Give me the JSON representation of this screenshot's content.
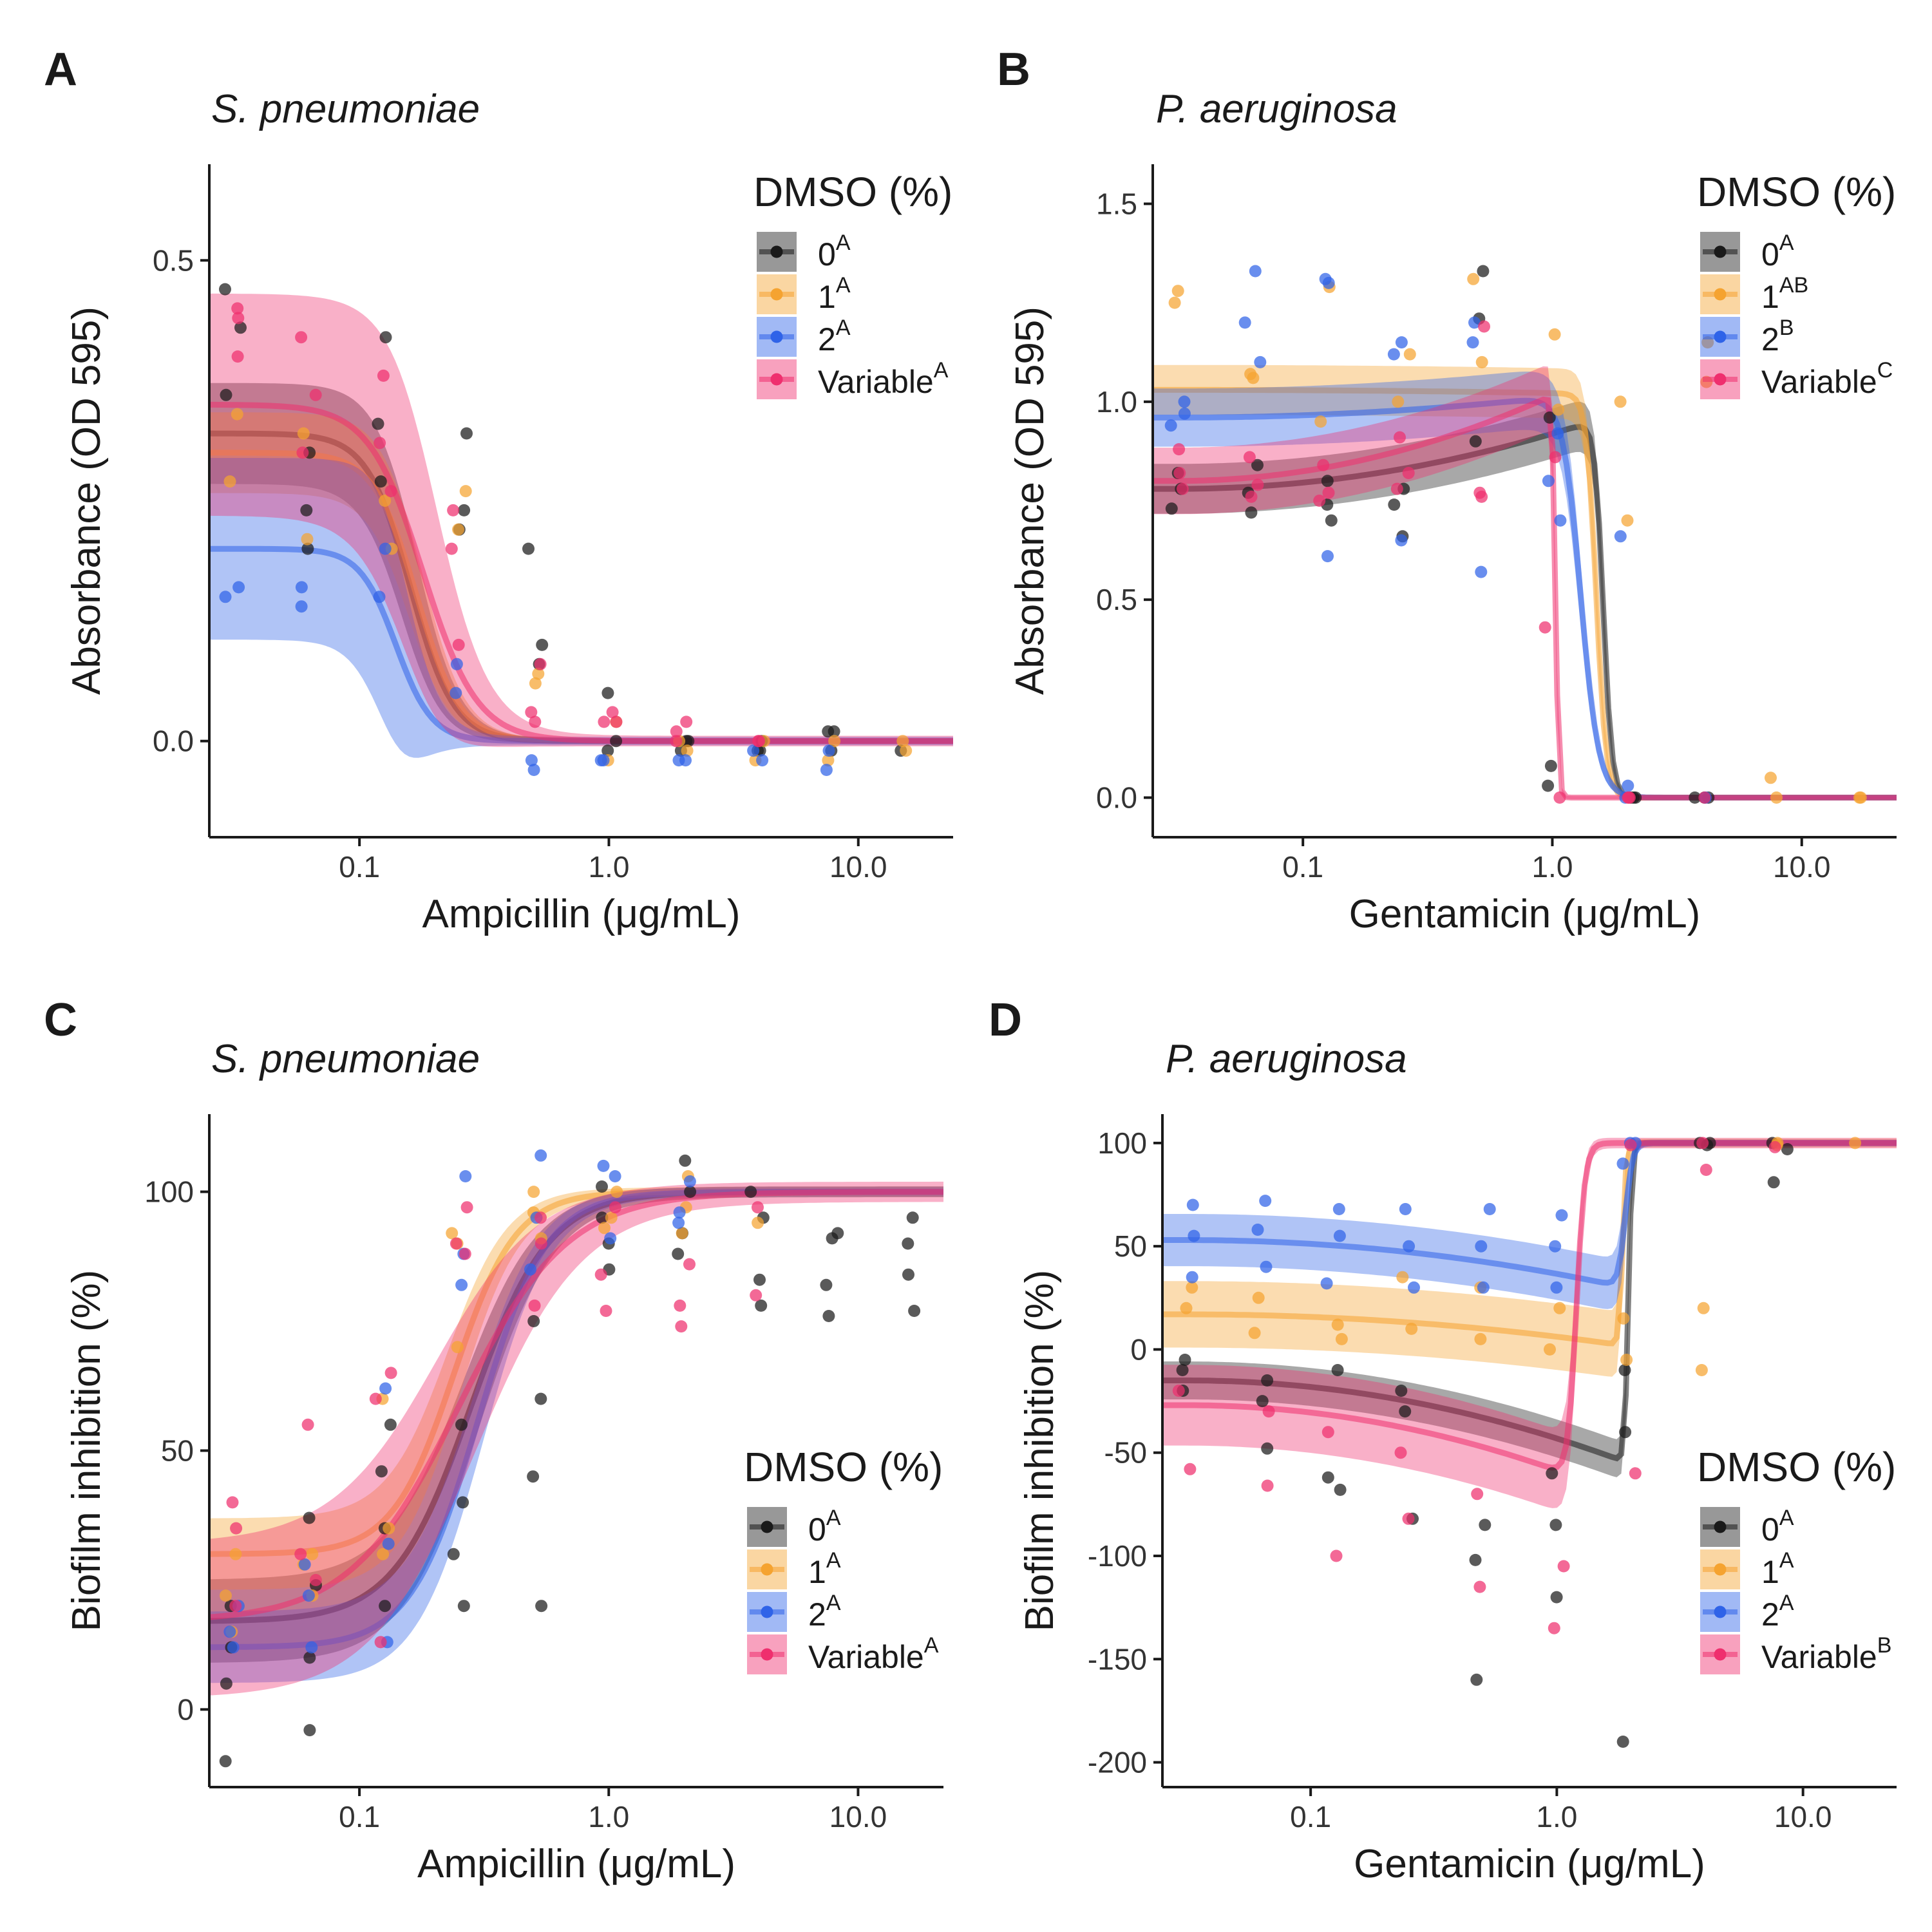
{
  "legend_title": "DMSO (%)",
  "groups": [
    {
      "key": "0",
      "color": "#1a1a1a"
    },
    {
      "key": "1",
      "color": "#f5a330"
    },
    {
      "key": "2",
      "color": "#2f63e8"
    },
    {
      "key": "Variable",
      "color": "#ef2f6e"
    }
  ],
  "chart_data": [
    {
      "panel": "A",
      "title": "S. pneumoniae",
      "type": "line",
      "xlabel_prefix": "Ampicillin (",
      "xlabel_mu": "μ",
      "xlabel_suffix": "g/mL)",
      "ylabel": "Absorbance (OD 595)",
      "x_scale": "log10",
      "xlim": [
        0.025,
        24
      ],
      "ylim": [
        -0.1,
        0.6
      ],
      "x_ticks": [
        0.1,
        1.0,
        10.0
      ],
      "x_tick_labels": [
        "0.1",
        "1.0",
        "10.0"
      ],
      "y_ticks": [
        0.0,
        0.5
      ],
      "y_tick_labels": [
        "0.0",
        "0.5"
      ],
      "legend_position": "top-right",
      "concentrations": [
        0.03125,
        0.0625,
        0.125,
        0.25,
        0.5,
        1,
        2,
        4,
        8,
        16
      ],
      "series": [
        {
          "name": "0",
          "superscript": "A",
          "top": 0.32,
          "bottom": 0.0,
          "ec50": 0.16,
          "hill": 5,
          "band": 0.05,
          "points": [
            0.47,
            0.43,
            0.36,
            0.3,
            0.24,
            0.2,
            0.42,
            0.33,
            0.27,
            0.22,
            0.32,
            0.24,
            0.2,
            0.1,
            0.08,
            0.05,
            0.0,
            -0.01,
            0.0,
            -0.01,
            0.0,
            -0.01,
            0.0,
            -0.01,
            0.01,
            -0.01,
            0.01,
            -0.01
          ]
        },
        {
          "name": "1",
          "superscript": "A",
          "top": 0.3,
          "bottom": 0.0,
          "ec50": 0.17,
          "hill": 5,
          "band": 0.04,
          "points": [
            0.34,
            0.27,
            0.21,
            0.32,
            0.25,
            0.2,
            0.26,
            0.22,
            0.07,
            0.06,
            0.02,
            -0.02,
            0.0,
            -0.01,
            0.0,
            -0.02,
            0.0,
            -0.02,
            0.0,
            -0.01
          ]
        },
        {
          "name": "2",
          "superscript": "A",
          "top": 0.2,
          "bottom": 0.0,
          "ec50": 0.14,
          "hill": 6,
          "band": 0.09,
          "points": [
            0.16,
            0.15,
            0.16,
            0.14,
            0.2,
            0.15,
            0.08,
            0.05,
            -0.02,
            -0.03,
            -0.02,
            -0.02,
            -0.02,
            -0.02,
            -0.01,
            -0.02,
            -0.01,
            -0.03
          ]
        },
        {
          "name": "Variable",
          "superscript": "A",
          "top": 0.35,
          "bottom": 0.0,
          "ec50": 0.18,
          "hill": 4,
          "band": 0.11,
          "points": [
            0.45,
            0.44,
            0.4,
            0.36,
            0.3,
            0.42,
            0.38,
            0.31,
            0.26,
            0.2,
            0.24,
            0.1,
            0.08,
            0.03,
            0.02,
            0.03,
            0.02,
            0.02,
            0.02,
            0.01,
            0.0,
            0.0,
            0.0
          ]
        }
      ]
    },
    {
      "panel": "B",
      "title": "P. aeruginosa",
      "type": "line",
      "xlabel_prefix": "Gentamicin (",
      "xlabel_mu": "μ",
      "xlabel_suffix": "g/mL)",
      "ylabel": "Absorbance (OD 595)",
      "x_scale": "log10",
      "xlim": [
        0.025,
        24
      ],
      "ylim": [
        -0.1,
        1.6
      ],
      "x_ticks": [
        0.1,
        1.0,
        10.0
      ],
      "x_tick_labels": [
        "0.1",
        "1.0",
        "10.0"
      ],
      "y_ticks": [
        0.0,
        0.5,
        1.0,
        1.5
      ],
      "y_tick_labels": [
        "0.0",
        "0.5",
        "1.0",
        "1.5"
      ],
      "legend_position": "top-right",
      "concentrations": [
        0.03125,
        0.0625,
        0.125,
        0.25,
        0.5,
        1,
        2,
        4,
        8,
        16
      ],
      "series": [
        {
          "name": "0",
          "superscript": "A",
          "top": 0.78,
          "bottom": 0.0,
          "ec50": 1.6,
          "hill": 25,
          "band": 0.06,
          "rise": 0.18,
          "points": [
            0.73,
            0.78,
            0.82,
            0.72,
            0.77,
            0.84,
            0.7,
            0.74,
            0.8,
            0.66,
            0.74,
            0.78,
            1.21,
            0.9,
            1.33,
            0.96,
            0.08,
            0.03,
            0.0,
            0.0,
            0.0,
            0.0,
            0.0,
            0.0
          ]
        },
        {
          "name": "1",
          "superscript": "AB",
          "top": 1.03,
          "bottom": 0.0,
          "ec50": 1.5,
          "hill": 22,
          "band": 0.06,
          "rise": -0.01,
          "points": [
            1.28,
            1.25,
            1.07,
            1.06,
            0.95,
            1.29,
            1.12,
            1.0,
            1.31,
            1.1,
            0.98,
            1.17,
            1.0,
            0.7,
            1.15,
            1.05,
            0.05,
            0.0,
            0.0,
            0.0
          ]
        },
        {
          "name": "2",
          "superscript": "B",
          "top": 0.96,
          "bottom": 0.0,
          "ec50": 1.3,
          "hill": 12,
          "band": 0.07,
          "rise": 0.06,
          "points": [
            1.0,
            0.97,
            0.94,
            1.33,
            1.2,
            1.1,
            0.61,
            1.31,
            1.3,
            0.65,
            1.15,
            1.12,
            0.57,
            1.2,
            1.15,
            0.92,
            0.7,
            0.8,
            0.66,
            0.03,
            0.0,
            0.0
          ]
        },
        {
          "name": "Variable",
          "superscript": "C",
          "top": 0.8,
          "bottom": 0.0,
          "ec50": 1.03,
          "hill": 70,
          "band": 0.08,
          "rise": 0.22,
          "points": [
            0.88,
            0.82,
            0.78,
            0.86,
            0.79,
            0.76,
            0.84,
            0.77,
            0.75,
            0.91,
            0.82,
            0.78,
            1.19,
            0.77,
            0.76,
            0.43,
            0.86,
            0.0,
            0.0,
            0.0,
            0.0,
            0.0
          ]
        }
      ]
    },
    {
      "panel": "C",
      "title": "S. pneumoniae",
      "type": "line",
      "xlabel_prefix": "Ampicillin (",
      "xlabel_mu": "μ",
      "xlabel_suffix": "g/mL)",
      "ylabel": "Biofilm inhibition (%)",
      "x_scale": "log10",
      "xlim": [
        0.025,
        22
      ],
      "ylim": [
        -15,
        115
      ],
      "x_ticks": [
        0.1,
        1.0,
        10.0
      ],
      "x_tick_labels": [
        "0.1",
        "1.0",
        "10.0"
      ],
      "y_ticks": [
        0,
        50,
        100
      ],
      "y_tick_labels": [
        "0",
        "50",
        "100"
      ],
      "legend_position": "bottom-right",
      "concentrations": [
        0.03125,
        0.0625,
        0.125,
        0.25,
        0.5,
        1,
        2,
        4,
        8,
        16
      ],
      "series": [
        {
          "name": "0",
          "superscript": "A",
          "top": 100,
          "bottom": 17,
          "ec50": 0.28,
          "hill": 2.8,
          "band": 7,
          "points": [
            -10,
            5,
            12,
            20,
            24,
            37,
            -4,
            10,
            20,
            35,
            46,
            55,
            20,
            30,
            40,
            55,
            20,
            45,
            60,
            75,
            85,
            90,
            95,
            101,
            92,
            100,
            106,
            88,
            83,
            95,
            100,
            78,
            82,
            91,
            76,
            92,
            95,
            77,
            84,
            90
          ]
        },
        {
          "name": "1",
          "superscript": "A",
          "top": 100,
          "bottom": 30,
          "ec50": 0.24,
          "hill": 3.5,
          "band": 6,
          "points": [
            30,
            22,
            15,
            28,
            22,
            30,
            35,
            30,
            60,
            70,
            90,
            92,
            100,
            96,
            91,
            93,
            100,
            95,
            103,
            97,
            92,
            94
          ]
        },
        {
          "name": "2",
          "superscript": "A",
          "top": 100,
          "bottom": 12,
          "ec50": 0.3,
          "hill": 3.2,
          "band": 6,
          "points": [
            12,
            15,
            20,
            12,
            22,
            28,
            13,
            32,
            62,
            82,
            88,
            103,
            85,
            107,
            95,
            105,
            91,
            103,
            96,
            102,
            94
          ]
        },
        {
          "name": "Variable",
          "superscript": "A",
          "top": 100,
          "bottom": 17,
          "ec50": 0.25,
          "hill": 2.0,
          "band": 13,
          "points": [
            35,
            40,
            20,
            30,
            55,
            25,
            65,
            60,
            13,
            90,
            88,
            97,
            95,
            78,
            90,
            77,
            97,
            84,
            78,
            86,
            74,
            80,
            97
          ]
        }
      ]
    },
    {
      "panel": "D",
      "title": "P. aeruginosa",
      "type": "line",
      "xlabel_prefix": "Gentamicin (",
      "xlabel_mu": "μ",
      "xlabel_suffix": "g/mL)",
      "ylabel": "Biofilm inhibition (%)",
      "x_scale": "log10",
      "xlim": [
        0.025,
        24
      ],
      "ylim": [
        -212,
        114
      ],
      "x_ticks": [
        0.1,
        1.0,
        10.0
      ],
      "x_tick_labels": [
        "0.1",
        "1.0",
        "10.0"
      ],
      "y_ticks": [
        -200,
        -150,
        -100,
        -50,
        0,
        50,
        100
      ],
      "y_tick_labels": [
        "-200",
        "-150",
        "-100",
        "-50",
        "0",
        "50",
        "100"
      ],
      "legend_position": "bottom-right",
      "concentrations": [
        0.03125,
        0.0625,
        0.125,
        0.25,
        0.5,
        1,
        2,
        4,
        8,
        16
      ],
      "series": [
        {
          "name": "0",
          "superscript": "A",
          "top": 100,
          "bottom": -15,
          "ec50": 1.95,
          "hill": 60,
          "band": 8,
          "drift": -40,
          "points": [
            -10,
            -5,
            -20,
            -15,
            -25,
            -48,
            -10,
            -62,
            -68,
            -20,
            -30,
            -82,
            -85,
            -160,
            -102,
            -60,
            -120,
            -85,
            -40,
            -190,
            -10,
            99,
            100,
            100,
            81,
            100,
            97
          ]
        },
        {
          "name": "1",
          "superscript": "A",
          "top": 100,
          "bottom": 17,
          "ec50": 1.85,
          "hill": 60,
          "band": 14,
          "drift": -15,
          "points": [
            30,
            20,
            8,
            25,
            12,
            5,
            35,
            10,
            30,
            5,
            20,
            0,
            15,
            -5,
            20,
            -10,
            99,
            100,
            100
          ]
        },
        {
          "name": "2",
          "superscript": "A",
          "top": 100,
          "bottom": 53,
          "ec50": 1.9,
          "hill": 30,
          "band": 11,
          "drift": -23,
          "points": [
            70,
            55,
            35,
            72,
            58,
            40,
            68,
            55,
            32,
            68,
            50,
            30,
            68,
            50,
            30,
            65,
            50,
            30,
            90,
            100,
            100
          ]
        },
        {
          "name": "Variable",
          "superscript": "B",
          "top": 100,
          "bottom": -27,
          "ec50": 1.2,
          "hill": 25,
          "band": 17,
          "drift": -35,
          "points": [
            -58,
            -20,
            -66,
            -30,
            -100,
            -40,
            -82,
            -50,
            -115,
            -70,
            -105,
            -135,
            -60,
            99,
            87,
            100,
            98
          ]
        }
      ]
    }
  ]
}
